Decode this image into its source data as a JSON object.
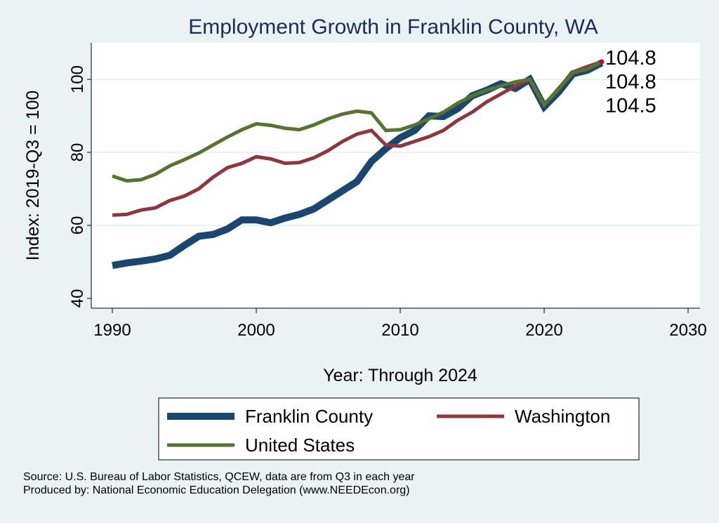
{
  "chart_data": {
    "type": "line",
    "title": "Employment Growth in Franklin County, WA",
    "xlabel": "Year: Through 2024",
    "ylabel": "Index: 2019-Q3 = 100",
    "xlim": [
      1990,
      2030
    ],
    "ylim": [
      40,
      105
    ],
    "xticks": [
      1990,
      2000,
      2010,
      2020,
      2030
    ],
    "yticks": [
      40,
      60,
      80,
      100
    ],
    "grid": true,
    "legend_position": "bottom",
    "x": [
      1990,
      1991,
      1992,
      1993,
      1994,
      1995,
      1996,
      1997,
      1998,
      1999,
      2000,
      2001,
      2002,
      2003,
      2004,
      2005,
      2006,
      2007,
      2008,
      2009,
      2010,
      2011,
      2012,
      2013,
      2014,
      2015,
      2016,
      2017,
      2018,
      2019,
      2020,
      2021,
      2022,
      2023,
      2024
    ],
    "series": [
      {
        "name": "Franklin  County",
        "color": "#1a476f",
        "width": 10,
        "values": [
          49,
          49.7,
          50.2,
          50.8,
          51.8,
          54.5,
          57,
          57.5,
          59,
          61.5,
          61.5,
          60.7,
          62,
          63,
          64.5,
          67,
          69.5,
          72,
          77.5,
          81,
          84,
          86,
          90,
          89.8,
          92,
          95.5,
          97,
          98.8,
          97.5,
          100,
          92.5,
          96.5,
          101.5,
          102.5,
          104.5
        ]
      },
      {
        "name": "Washington",
        "color": "#90353b",
        "width": 5,
        "values": [
          62.8,
          63,
          64.2,
          64.8,
          66.8,
          68,
          70,
          73.2,
          75.8,
          77,
          78.8,
          78.2,
          77,
          77.2,
          78.5,
          80.5,
          83,
          85,
          86,
          82,
          81.7,
          83,
          84.3,
          86,
          88.8,
          91,
          93.8,
          96,
          98.2,
          100,
          93,
          97.5,
          102,
          103.5,
          104.8
        ]
      },
      {
        "name": "United States",
        "color": "#55752f",
        "width": 5,
        "values": [
          73.5,
          72.2,
          72.5,
          74,
          76.3,
          78,
          79.8,
          82,
          84.2,
          86.2,
          87.8,
          87.4,
          86.6,
          86.2,
          87.5,
          89.2,
          90.5,
          91.3,
          90.8,
          86,
          86.2,
          87.5,
          89.2,
          91,
          93.5,
          95.5,
          97,
          98.2,
          99.3,
          100,
          93,
          97.3,
          101.8,
          102.8,
          104.8
        ]
      }
    ],
    "end_labels": [
      "104.8",
      "104.8",
      "104.5"
    ],
    "end_marker_color": "#c10534"
  },
  "notes": {
    "source": "Source: U.S. Bureau of Labor Statistics, QCEW, data are from Q3 in each year",
    "produced": "Produced by: National Economic Education Delegation (www.NEEDEcon.org)"
  }
}
